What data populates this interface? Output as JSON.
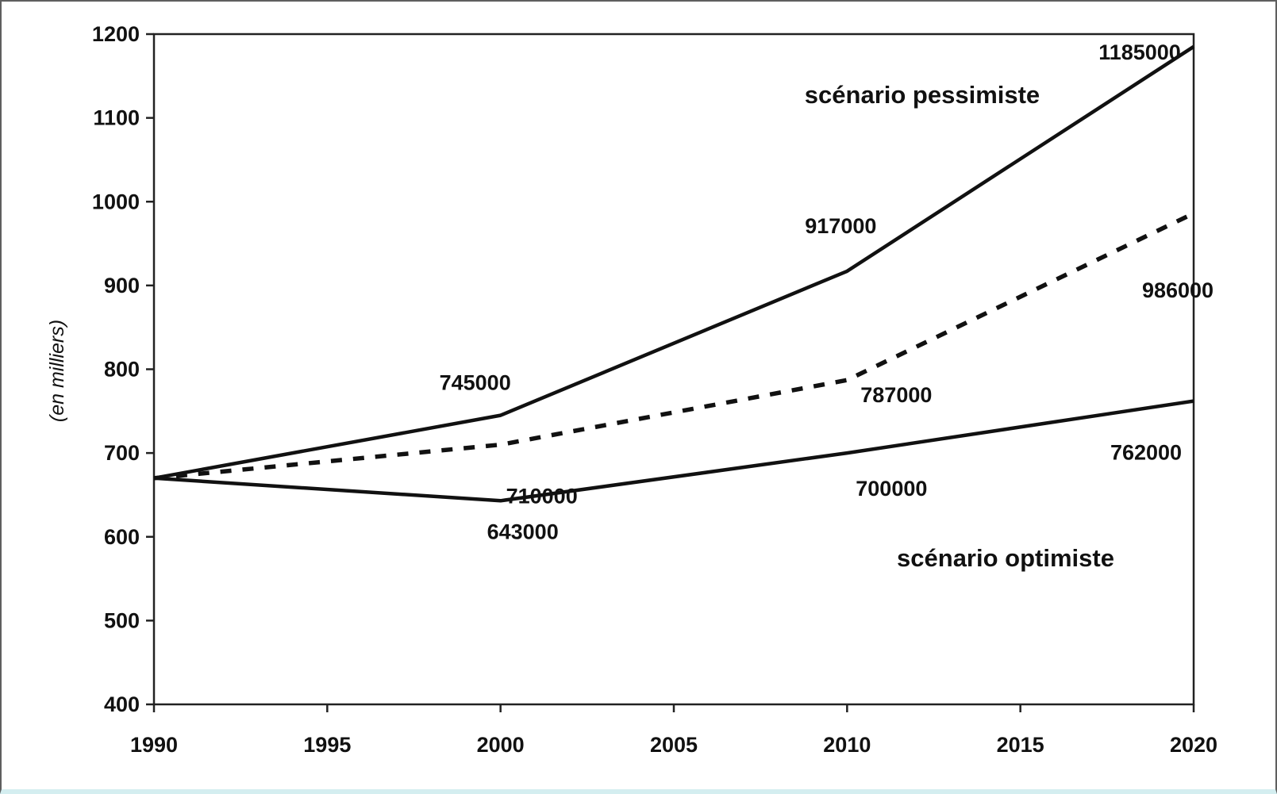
{
  "chart_data": {
    "type": "line",
    "title": "",
    "xlabel": "",
    "ylabel": "(en milliers)",
    "xlim": [
      1990,
      2020
    ],
    "ylim": [
      400,
      1200
    ],
    "x_ticks": [
      1990,
      1995,
      2000,
      2005,
      2010,
      2015,
      2020
    ],
    "y_ticks": [
      400,
      500,
      600,
      700,
      800,
      900,
      1000,
      1100,
      1200
    ],
    "grid": false,
    "legend": "none",
    "series": [
      {
        "style": "solid",
        "color": "#111111",
        "points": [
          {
            "x": 1990,
            "y": 670
          },
          {
            "x": 2000,
            "y": 745
          },
          {
            "x": 2010,
            "y": 917
          },
          {
            "x": 2020,
            "y": 1185
          }
        ]
      },
      {
        "style": "dashed",
        "color": "#111111",
        "points": [
          {
            "x": 1990,
            "y": 670
          },
          {
            "x": 2000,
            "y": 710
          },
          {
            "x": 2010,
            "y": 787
          },
          {
            "x": 2020,
            "y": 986
          }
        ]
      },
      {
        "style": "solid",
        "color": "#111111",
        "points": [
          {
            "x": 1990,
            "y": 670
          },
          {
            "x": 2000,
            "y": 643
          },
          {
            "x": 2010,
            "y": 700
          },
          {
            "x": 2020,
            "y": 762
          }
        ]
      }
    ],
    "data_labels": [
      {
        "text": "745000",
        "x": 2000,
        "y": 745
      },
      {
        "text": "917000",
        "x": 2010,
        "y": 917
      },
      {
        "text": "1185000",
        "x": 2020,
        "y": 1185
      },
      {
        "text": "710000",
        "x": 2000,
        "y": 710
      },
      {
        "text": "787000",
        "x": 2010,
        "y": 787
      },
      {
        "text": "986000",
        "x": 2020,
        "y": 986
      },
      {
        "text": "643000",
        "x": 2000,
        "y": 643
      },
      {
        "text": "700000",
        "x": 2010,
        "y": 700
      },
      {
        "text": "762000",
        "x": 2020,
        "y": 762
      }
    ],
    "annotations": [
      {
        "text": "scénario pessimiste"
      },
      {
        "text": "scénario optimiste"
      }
    ]
  }
}
